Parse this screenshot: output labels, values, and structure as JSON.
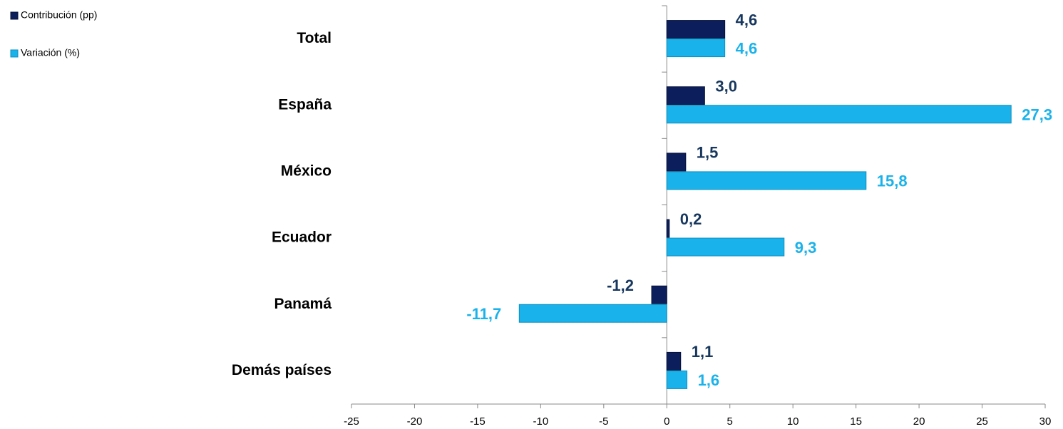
{
  "chart_data": {
    "type": "hbar",
    "categories": [
      "Total",
      "España",
      "México",
      "Ecuador",
      "Panamá",
      "Demás países"
    ],
    "series": [
      {
        "name": "Contribución (pp)",
        "color": "#0c1f5c",
        "label_color": "#17375e",
        "values": [
          4.6,
          3.0,
          1.5,
          0.2,
          -1.2,
          1.1
        ],
        "value_labels": [
          "4,6",
          "3,0",
          "1,5",
          "0,2",
          "-1,2",
          "1,1"
        ]
      },
      {
        "name": "Variación (%)",
        "color": "#1ab2ea",
        "label_color": "#1ab2ea",
        "values": [
          4.6,
          27.3,
          15.8,
          9.3,
          -11.7,
          1.6
        ],
        "value_labels": [
          "4,6",
          "27,3",
          "15,8",
          "9,3",
          "-11,7",
          "1,6"
        ]
      }
    ],
    "xlim": [
      -25,
      30
    ],
    "xticks": [
      -25,
      -20,
      -15,
      -10,
      -5,
      0,
      5,
      10,
      15,
      20,
      25,
      30
    ],
    "legend": "top-left"
  }
}
